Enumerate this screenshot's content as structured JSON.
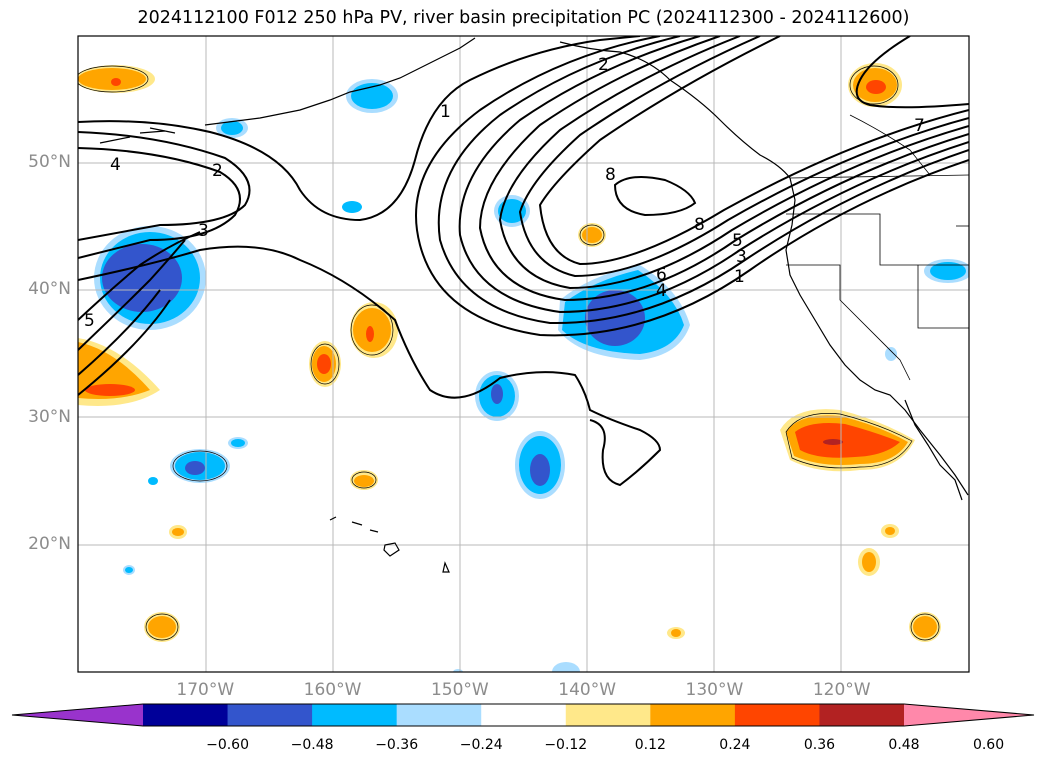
{
  "title": "2024112100 F012 250 hPa PV, river basin precipitation PC (2024112300 - 2024112600)",
  "map": {
    "lon_range": [
      -180,
      -110
    ],
    "lat_range": [
      10,
      60
    ],
    "lat_labels": [
      {
        "lat": 50,
        "text": "50°N"
      },
      {
        "lat": 40,
        "text": "40°N"
      },
      {
        "lat": 30,
        "text": "30°N"
      },
      {
        "lat": 20,
        "text": "20°N"
      }
    ],
    "lon_labels": [
      {
        "lon": -170,
        "text": "170°W"
      },
      {
        "lon": -160,
        "text": "160°W"
      },
      {
        "lon": -150,
        "text": "150°W"
      },
      {
        "lon": -140,
        "text": "140°W"
      },
      {
        "lon": -130,
        "text": "130°W"
      },
      {
        "lon": -120,
        "text": "120°W"
      }
    ],
    "pv_contour_labels": [
      "1",
      "2",
      "3",
      "4",
      "5",
      "6",
      "7",
      "8"
    ]
  },
  "colorbar": {
    "colors": [
      "#9933cc",
      "#000099",
      "#3355cc",
      "#00bbff",
      "#aaddff",
      "#ffffff",
      "#ffe88a",
      "#ffa500",
      "#ff4500",
      "#b22222",
      "#ff88aa"
    ],
    "ticks": [
      "−0.60",
      "−0.48",
      "−0.36",
      "−0.24",
      "−0.12",
      "0.12",
      "0.24",
      "0.36",
      "0.48",
      "0.60"
    ]
  }
}
